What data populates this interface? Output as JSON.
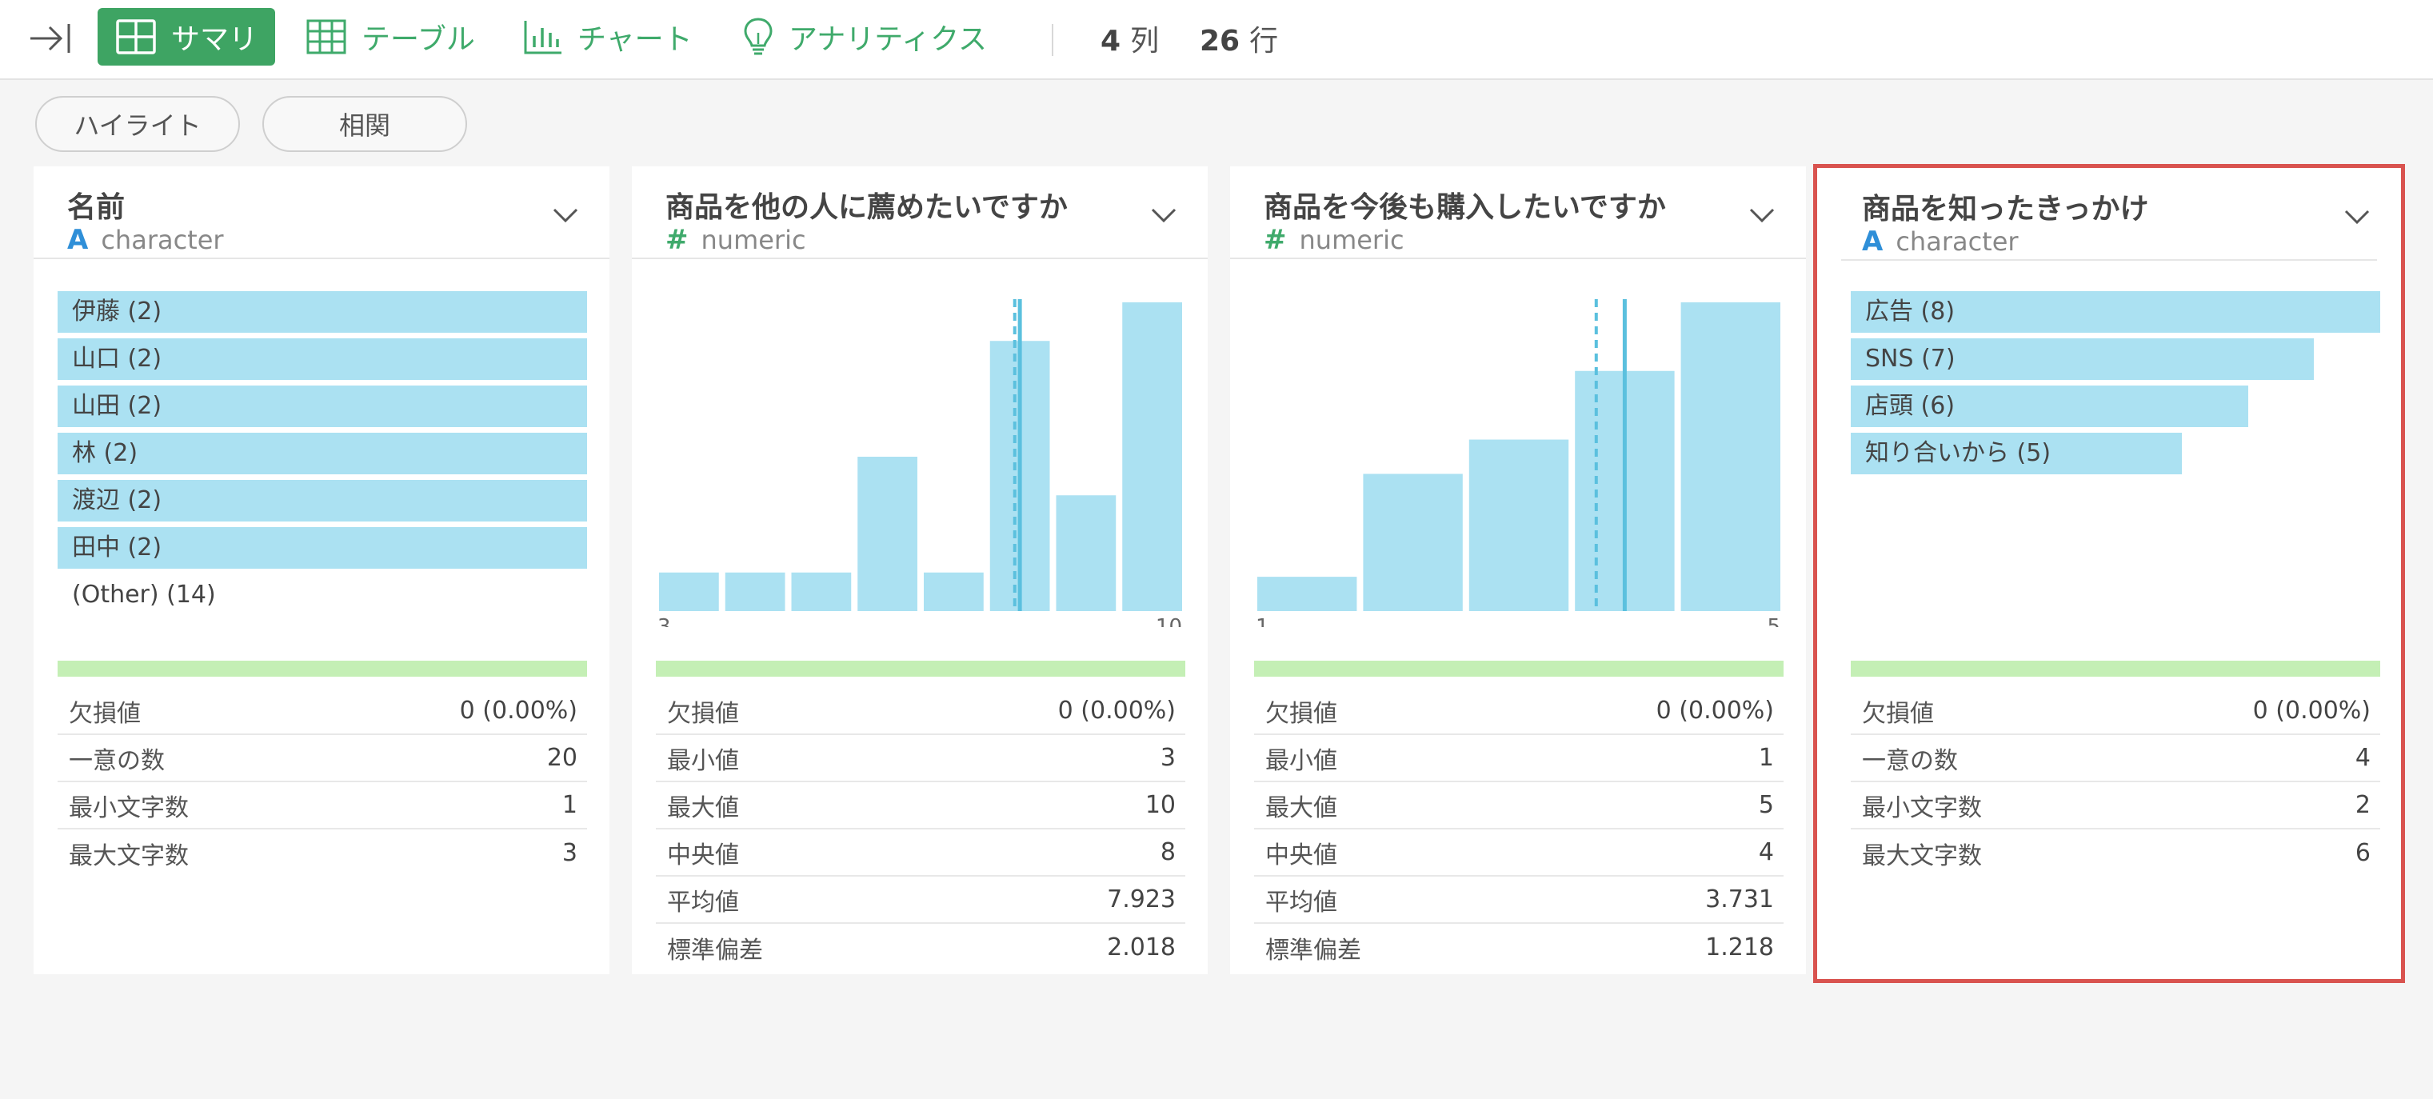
{
  "toolbar": {
    "summary_label": "サマリ",
    "table_label": "テーブル",
    "chart_label": "チャート",
    "analytics_label": "アナリティクス",
    "columns_count": "4",
    "columns_unit": "列",
    "rows_count": "26",
    "rows_unit": "行"
  },
  "subtoolbar": {
    "highlight_label": "ハイライト",
    "correlation_label": "相関"
  },
  "colors": {
    "accent": "#3ea463",
    "bar": "#abe1f2",
    "missing_bar": "#c4efb5",
    "selection": "#d9534f",
    "mean_line": "#5bc0de"
  },
  "cards": [
    {
      "title": "名前",
      "type_icon": "A",
      "type": "character",
      "categories": [
        {
          "label": "伊藤 (2)",
          "count": 2
        },
        {
          "label": "山口 (2)",
          "count": 2
        },
        {
          "label": "山田 (2)",
          "count": 2
        },
        {
          "label": "林 (2)",
          "count": 2
        },
        {
          "label": "渡辺 (2)",
          "count": 2
        },
        {
          "label": "田中 (2)",
          "count": 2
        }
      ],
      "other_label": "(Other) (14)",
      "stats": [
        {
          "label": "欠損値",
          "value": "0 (0.00%)"
        },
        {
          "label": "一意の数",
          "value": "20"
        },
        {
          "label": "最小文字数",
          "value": "1"
        },
        {
          "label": "最大文字数",
          "value": "3"
        }
      ]
    },
    {
      "title": "商品を他の人に薦めたいですか",
      "type_icon": "#",
      "type": "numeric",
      "x_min_label": "3",
      "x_max_label": "10",
      "stats": [
        {
          "label": "欠損値",
          "value": "0 (0.00%)"
        },
        {
          "label": "最小値",
          "value": "3"
        },
        {
          "label": "最大値",
          "value": "10"
        },
        {
          "label": "中央値",
          "value": "8"
        },
        {
          "label": "平均値",
          "value": "7.923"
        },
        {
          "label": "標準偏差",
          "value": "2.018"
        }
      ]
    },
    {
      "title": "商品を今後も購入したいですか",
      "type_icon": "#",
      "type": "numeric",
      "x_min_label": "1",
      "x_max_label": "5",
      "stats": [
        {
          "label": "欠損値",
          "value": "0 (0.00%)"
        },
        {
          "label": "最小値",
          "value": "1"
        },
        {
          "label": "最大値",
          "value": "5"
        },
        {
          "label": "中央値",
          "value": "4"
        },
        {
          "label": "平均値",
          "value": "3.731"
        },
        {
          "label": "標準偏差",
          "value": "1.218"
        }
      ]
    },
    {
      "title": "商品を知ったきっかけ",
      "type_icon": "A",
      "type": "character",
      "categories": [
        {
          "label": "広告 (8)",
          "count": 8
        },
        {
          "label": "SNS (7)",
          "count": 7
        },
        {
          "label": "店頭 (6)",
          "count": 6
        },
        {
          "label": "知り合いから (5)",
          "count": 5
        }
      ],
      "stats": [
        {
          "label": "欠損値",
          "value": "0 (0.00%)"
        },
        {
          "label": "一意の数",
          "value": "4"
        },
        {
          "label": "最小文字数",
          "value": "2"
        },
        {
          "label": "最大文字数",
          "value": "6"
        }
      ]
    }
  ],
  "chart_data": [
    {
      "type": "bar",
      "title": "",
      "xlabel": "",
      "ylabel": "",
      "categories": [
        "伊藤",
        "山口",
        "山田",
        "林",
        "渡辺",
        "田中",
        "(Other)"
      ],
      "values": [
        2,
        2,
        2,
        2,
        2,
        2,
        14
      ]
    },
    {
      "type": "bar",
      "title": "",
      "xlabel": "",
      "ylabel": "",
      "x": [
        3,
        4,
        5,
        6,
        7,
        8,
        9,
        10
      ],
      "values": [
        1,
        1,
        1,
        4,
        1,
        7,
        3,
        8
      ],
      "xlim": [
        3,
        10
      ],
      "median": 8,
      "mean": 7.923
    },
    {
      "type": "bar",
      "title": "",
      "xlabel": "",
      "ylabel": "",
      "x": [
        1,
        2,
        3,
        4,
        5
      ],
      "values": [
        1,
        4,
        5,
        7,
        9
      ],
      "xlim": [
        1,
        5
      ],
      "median": 4,
      "mean": 3.731
    },
    {
      "type": "bar",
      "title": "",
      "xlabel": "",
      "ylabel": "",
      "categories": [
        "広告",
        "SNS",
        "店頭",
        "知り合いから"
      ],
      "values": [
        8,
        7,
        6,
        5
      ]
    }
  ]
}
